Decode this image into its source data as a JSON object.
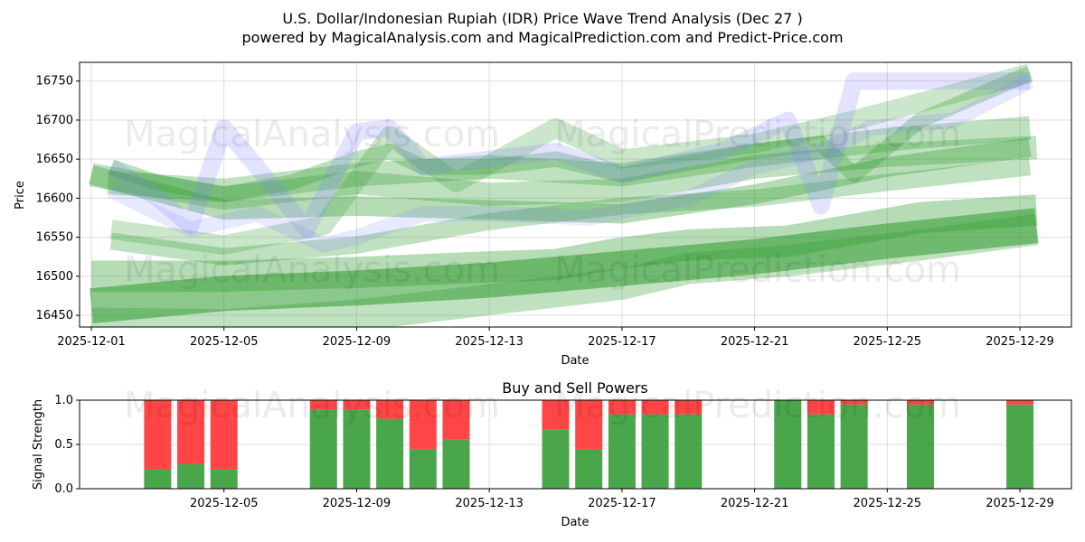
{
  "title_line1": "U.S. Dollar/Indonesian Rupiah (IDR) Price Wave Trend Analysis (Dec 27 )",
  "title_line2": "powered by MagicalAnalysis.com and MagicalPrediction.com and Predict-Price.com",
  "watermarks": [
    "MagicalAnalysis.com",
    "MagicalPrediction.com"
  ],
  "colors": {
    "green": "#2e9a2e",
    "blue": "#8080ff",
    "buy": "#4aa64a",
    "sell": "#ff4545"
  },
  "chart_data": [
    {
      "type": "area",
      "title": "",
      "xlabel": "Date",
      "ylabel": "Price",
      "xlim": [
        "2025-11-30.65",
        "2025-12-30.55"
      ],
      "ylim": [
        16435,
        16774
      ],
      "yticks": [
        16450,
        16500,
        16550,
        16600,
        16650,
        16700,
        16750
      ],
      "xticks": [
        "2025-12-01",
        "2025-12-05",
        "2025-12-09",
        "2025-12-13",
        "2025-12-17",
        "2025-12-21",
        "2025-12-25",
        "2025-12-29"
      ],
      "xtick_days": [
        1,
        5,
        9,
        13,
        17,
        21,
        25,
        29
      ],
      "grid": true,
      "bands": [
        {
          "color": "green",
          "opacity": 0.55,
          "width": 45,
          "x": [
            1,
            5,
            9,
            13,
            17,
            21,
            25,
            29.5
          ],
          "y": [
            16462,
            16478,
            16485,
            16495,
            16510,
            16525,
            16545,
            16565
          ]
        },
        {
          "color": "green",
          "opacity": 0.35,
          "width": 40,
          "x": [
            1,
            5,
            9,
            13,
            15,
            17,
            19,
            22,
            24,
            26,
            29.5
          ],
          "y": [
            16500,
            16500,
            16505,
            16512,
            16515,
            16530,
            16540,
            16545,
            16560,
            16575,
            16585
          ]
        },
        {
          "color": "green",
          "opacity": 0.3,
          "width": 40,
          "x": [
            1,
            5,
            9,
            13,
            15,
            17,
            19,
            22,
            24,
            26,
            29.5
          ],
          "y": [
            16440,
            16438,
            16450,
            16470,
            16480,
            16490,
            16510,
            16520,
            16530,
            16540,
            16560
          ]
        },
        {
          "color": "green",
          "opacity": 0.35,
          "width": 25,
          "x": [
            1,
            5,
            9,
            13,
            17,
            21,
            25,
            29.3
          ],
          "y": [
            16630,
            16585,
            16590,
            16585,
            16580,
            16605,
            16640,
            16665
          ]
        },
        {
          "color": "green",
          "opacity": 0.3,
          "width": 30,
          "x": [
            1.5,
            5,
            9,
            13,
            17,
            21,
            25,
            29.3
          ],
          "y": [
            16620,
            16610,
            16630,
            16640,
            16630,
            16655,
            16675,
            16690
          ]
        },
        {
          "color": "green",
          "opacity": 0.3,
          "width": 20,
          "x": [
            1.6,
            3,
            5,
            7,
            9,
            10,
            11,
            13,
            15,
            17,
            21,
            23,
            24,
            26,
            29.3
          ],
          "y": [
            16640,
            16620,
            16605,
            16620,
            16650,
            16660,
            16640,
            16640,
            16650,
            16630,
            16660,
            16670,
            16630,
            16700,
            16760
          ]
        },
        {
          "color": "green",
          "opacity": 0.25,
          "width": 25,
          "x": [
            1.6,
            5,
            8,
            10,
            12,
            15,
            17,
            21,
            24,
            29.3
          ],
          "y": [
            16560,
            16540,
            16565,
            16680,
            16620,
            16690,
            16650,
            16670,
            16700,
            16760
          ]
        },
        {
          "color": "green",
          "opacity": 0.3,
          "width": 22,
          "x": [
            1.6,
            5,
            9,
            13,
            17,
            21,
            25,
            29.3
          ],
          "y": [
            16545,
            16525,
            16540,
            16570,
            16590,
            16600,
            16620,
            16640
          ]
        },
        {
          "color": "green",
          "opacity": 0.3,
          "width": 30,
          "x": [
            1,
            5,
            9,
            13,
            17,
            21,
            25,
            29.5
          ],
          "y": [
            16630,
            16600,
            16620,
            16605,
            16610,
            16640,
            16655,
            16665
          ]
        },
        {
          "color": "blue",
          "opacity": 0.22,
          "width": 22,
          "x": [
            1.6,
            3,
            4,
            5,
            6,
            7.5,
            9,
            10,
            11,
            13,
            15,
            17,
            20,
            22,
            23,
            24,
            26,
            29.3
          ],
          "y": [
            16640,
            16600,
            16565,
            16690,
            16640,
            16560,
            16685,
            16690,
            16640,
            16650,
            16660,
            16630,
            16660,
            16700,
            16590,
            16750,
            16750,
            16750
          ]
        },
        {
          "color": "blue",
          "opacity": 0.18,
          "width": 20,
          "x": [
            1.6,
            4,
            6,
            8,
            9,
            11,
            13,
            16,
            19,
            21,
            23,
            24.5,
            27,
            29.3
          ],
          "y": [
            16610,
            16560,
            16580,
            16540,
            16550,
            16580,
            16580,
            16575,
            16600,
            16640,
            16660,
            16690,
            16700,
            16750
          ]
        }
      ]
    },
    {
      "type": "bar",
      "title": "Buy and Sell Powers",
      "xlabel": "Date",
      "ylabel": "Signal Strength",
      "ylim": [
        0,
        1
      ],
      "yticks": [
        "0.0",
        "0.5",
        "1.0"
      ],
      "xticks": [
        "2025-12-05",
        "2025-12-09",
        "2025-12-13",
        "2025-12-17",
        "2025-12-21",
        "2025-12-25",
        "2025-12-29"
      ],
      "xtick_days": [
        5,
        9,
        13,
        17,
        21,
        25,
        29
      ],
      "days": [
        3,
        4,
        5,
        8,
        9,
        10,
        11,
        12,
        15,
        16,
        17,
        18,
        19,
        22,
        23,
        24,
        26,
        29
      ],
      "series": [
        {
          "name": "Buy",
          "values": [
            0.22,
            0.28,
            0.22,
            0.89,
            0.89,
            0.79,
            0.45,
            0.56,
            0.67,
            0.45,
            0.84,
            0.84,
            0.84,
            1.0,
            0.84,
            0.95,
            0.95,
            0.95
          ]
        },
        {
          "name": "Sell",
          "values": [
            0.78,
            0.72,
            0.78,
            0.11,
            0.11,
            0.21,
            0.55,
            0.44,
            0.33,
            0.55,
            0.16,
            0.16,
            0.16,
            0.0,
            0.16,
            0.05,
            0.05,
            0.05
          ]
        }
      ]
    }
  ]
}
